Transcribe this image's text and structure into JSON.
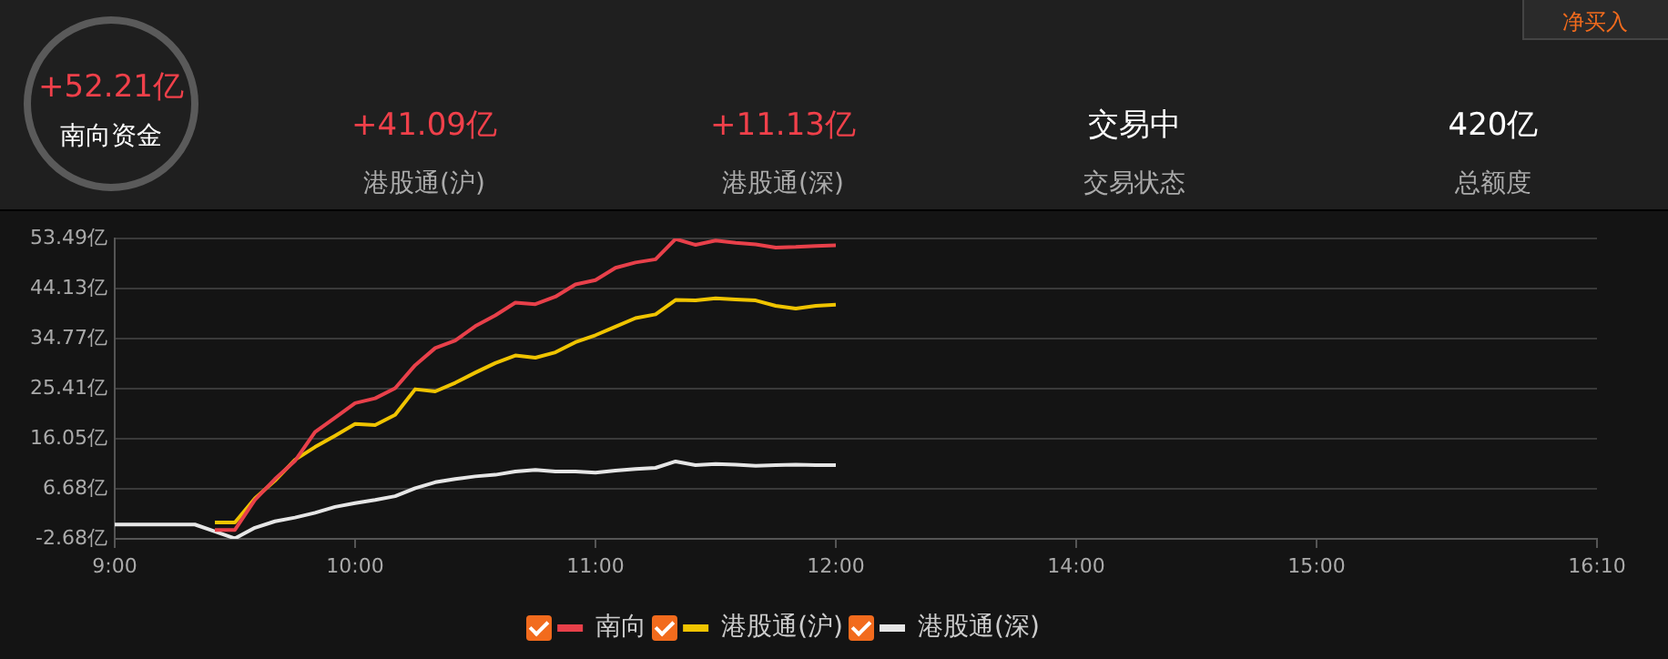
{
  "chart_data": {
    "type": "line",
    "annotations": [
      "+52.21亿",
      "南向资金",
      "+41.09亿",
      "港股通(沪)",
      "+11.13亿",
      "港股通(深)",
      "交易中",
      "交易状态",
      "420亿",
      "总额度",
      "净买入"
    ],
    "categories": [
      "9:00",
      null,
      null,
      null,
      null,
      null,
      null,
      null,
      null,
      null,
      null,
      null,
      "10:00",
      null,
      null,
      null,
      null,
      null,
      null,
      null,
      null,
      null,
      null,
      null,
      "11:00",
      null,
      null,
      null,
      null,
      null,
      null,
      null,
      null,
      null,
      null,
      null,
      "12:00",
      null,
      null,
      null,
      null,
      null,
      null,
      null,
      null,
      null,
      null,
      null,
      "14:00",
      null,
      null,
      null,
      null,
      null,
      null,
      null,
      null,
      null,
      null,
      null,
      "15:00",
      null,
      null,
      null,
      null,
      null,
      null,
      null,
      null,
      null,
      null,
      null,
      null,
      null,
      "16:10"
    ],
    "ylim": [
      -2.68,
      53.49
    ],
    "yticks": [
      {
        "value": -2.68,
        "label": "-2.68亿"
      },
      {
        "value": 6.68,
        "label": "6.68亿"
      },
      {
        "value": 16.05,
        "label": "16.05亿"
      },
      {
        "value": 25.41,
        "label": "25.41亿"
      },
      {
        "value": 34.77,
        "label": "34.77亿"
      },
      {
        "value": 44.13,
        "label": "44.13亿"
      },
      {
        "value": 53.49,
        "label": "53.49亿"
      }
    ],
    "grid": "y",
    "legend": "bottom",
    "marker": "none",
    "line_style": "solid",
    "series": [
      {
        "name": "南向",
        "color": "#e8404a",
        "values": [
          null,
          null,
          null,
          null,
          null,
          -1.0,
          -1.0,
          4.6,
          8.5,
          11.9,
          17.3,
          20.0,
          22.7,
          23.6,
          25.5,
          29.8,
          33.0,
          34.4,
          37.1,
          39.1,
          41.5,
          41.2,
          42.6,
          44.9,
          45.7,
          48.0,
          49.0,
          49.6,
          53.4,
          52.3,
          53.1,
          52.7,
          52.4,
          51.8,
          51.9,
          52.1,
          52.2,
          null,
          null,
          null,
          null,
          null,
          null,
          null,
          null,
          null,
          null,
          null,
          null,
          null,
          null,
          null,
          null,
          null,
          null,
          null,
          null,
          null,
          null,
          null,
          null,
          null,
          null,
          null,
          null,
          null,
          null,
          null,
          null,
          null,
          null,
          null,
          null,
          null,
          null
        ]
      },
      {
        "name": "港股通(沪)",
        "color": "#f0c400",
        "values": [
          null,
          null,
          null,
          null,
          null,
          0.4,
          0.4,
          4.9,
          8.2,
          12.1,
          14.5,
          16.6,
          18.8,
          18.6,
          20.5,
          25.3,
          24.9,
          26.5,
          28.4,
          30.2,
          31.6,
          31.2,
          32.2,
          34.1,
          35.4,
          37.0,
          38.6,
          39.3,
          42.0,
          41.9,
          42.3,
          42.1,
          41.9,
          40.9,
          40.4,
          40.9,
          41.1,
          null,
          null,
          null,
          null,
          null,
          null,
          null,
          null,
          null,
          null,
          null,
          null,
          null,
          null,
          null,
          null,
          null,
          null,
          null,
          null,
          null,
          null,
          null,
          null,
          null,
          null,
          null,
          null,
          null,
          null,
          null,
          null,
          null,
          null,
          null,
          null,
          null,
          null
        ]
      },
      {
        "name": "港股通(深)",
        "color": "#e6e6e6",
        "values": [
          0,
          0,
          0,
          0,
          0,
          -1.3,
          -2.6,
          -0.6,
          0.6,
          1.3,
          2.2,
          3.3,
          4.0,
          4.6,
          5.3,
          6.8,
          7.9,
          8.5,
          9.0,
          9.3,
          9.9,
          10.2,
          9.9,
          9.9,
          9.7,
          10.1,
          10.4,
          10.6,
          11.8,
          11.1,
          11.3,
          11.2,
          11.0,
          11.1,
          11.2,
          11.1,
          11.1,
          null,
          null,
          null,
          null,
          null,
          null,
          null,
          null,
          null,
          null,
          null,
          null,
          null,
          null,
          null,
          null,
          null,
          null,
          null,
          null,
          null,
          null,
          null,
          null,
          null,
          null,
          null,
          null,
          null,
          null,
          null,
          null,
          null,
          null,
          null,
          null,
          null,
          null
        ]
      }
    ]
  }
}
